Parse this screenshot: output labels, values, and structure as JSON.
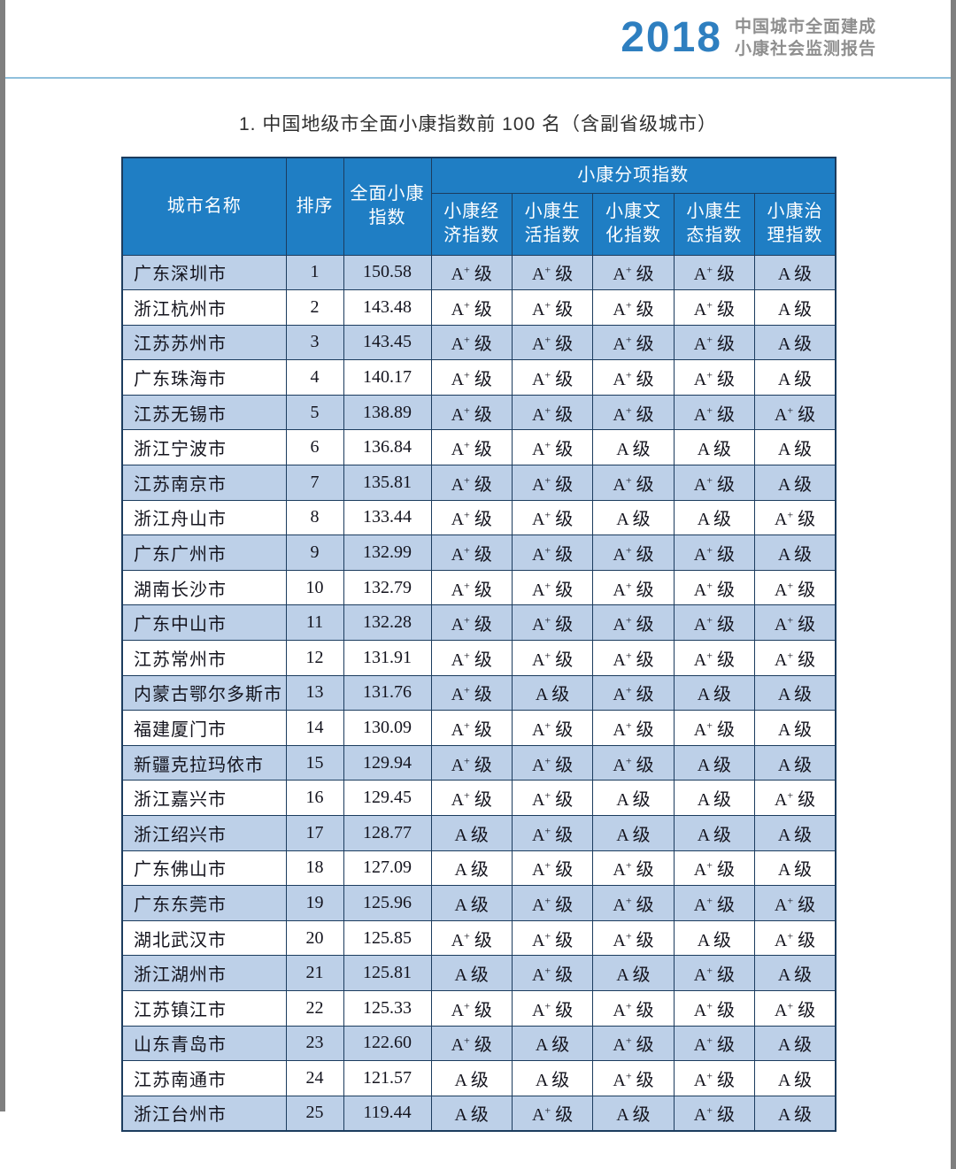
{
  "page": {
    "report_year": "2018",
    "report_title_line1": "中国城市全面建成",
    "report_title_line2": "小康社会监测报告",
    "section_title": "1. 中国地级市全面小康指数前 100 名（含副省级城市）"
  },
  "colors": {
    "header_blue": "#1f7ec4",
    "row_alt_blue": "#bdd0e8",
    "border_dark": "#1c3c5e",
    "year_accent_blue": "#2e7fc0",
    "report_name_gray": "#8e8e8e",
    "rule_light_blue": "#8fc0dc"
  },
  "table": {
    "headers": {
      "city": "城市名称",
      "rank": "排序",
      "overall_index_line1": "全面小康",
      "overall_index_line2": "指数",
      "sub_index_group": "小康分项指数",
      "sub_headers": [
        {
          "line1": "小康经",
          "line2": "济指数"
        },
        {
          "line1": "小康生",
          "line2": "活指数"
        },
        {
          "line1": "小康文",
          "line2": "化指数"
        },
        {
          "line1": "小康生",
          "line2": "态指数"
        },
        {
          "line1": "小康治",
          "line2": "理指数"
        }
      ]
    },
    "grade_suffix": "级",
    "rows": [
      {
        "city": "广东深圳市",
        "rank": "1",
        "index": "150.58",
        "grades": [
          "A+",
          "A+",
          "A+",
          "A+",
          "A"
        ]
      },
      {
        "city": "浙江杭州市",
        "rank": "2",
        "index": "143.48",
        "grades": [
          "A+",
          "A+",
          "A+",
          "A+",
          "A"
        ]
      },
      {
        "city": "江苏苏州市",
        "rank": "3",
        "index": "143.45",
        "grades": [
          "A+",
          "A+",
          "A+",
          "A+",
          "A"
        ]
      },
      {
        "city": "广东珠海市",
        "rank": "4",
        "index": "140.17",
        "grades": [
          "A+",
          "A+",
          "A+",
          "A+",
          "A"
        ]
      },
      {
        "city": "江苏无锡市",
        "rank": "5",
        "index": "138.89",
        "grades": [
          "A+",
          "A+",
          "A+",
          "A+",
          "A+"
        ]
      },
      {
        "city": "浙江宁波市",
        "rank": "6",
        "index": "136.84",
        "grades": [
          "A+",
          "A+",
          "A",
          "A",
          "A"
        ]
      },
      {
        "city": "江苏南京市",
        "rank": "7",
        "index": "135.81",
        "grades": [
          "A+",
          "A+",
          "A+",
          "A+",
          "A"
        ]
      },
      {
        "city": "浙江舟山市",
        "rank": "8",
        "index": "133.44",
        "grades": [
          "A+",
          "A+",
          "A",
          "A",
          "A+"
        ]
      },
      {
        "city": "广东广州市",
        "rank": "9",
        "index": "132.99",
        "grades": [
          "A+",
          "A+",
          "A+",
          "A+",
          "A"
        ]
      },
      {
        "city": "湖南长沙市",
        "rank": "10",
        "index": "132.79",
        "grades": [
          "A+",
          "A+",
          "A+",
          "A+",
          "A+"
        ]
      },
      {
        "city": "广东中山市",
        "rank": "11",
        "index": "132.28",
        "grades": [
          "A+",
          "A+",
          "A+",
          "A+",
          "A+"
        ]
      },
      {
        "city": "江苏常州市",
        "rank": "12",
        "index": "131.91",
        "grades": [
          "A+",
          "A+",
          "A+",
          "A+",
          "A+"
        ]
      },
      {
        "city": "内蒙古鄂尔多斯市",
        "rank": "13",
        "index": "131.76",
        "grades": [
          "A+",
          "A",
          "A+",
          "A",
          "A"
        ]
      },
      {
        "city": "福建厦门市",
        "rank": "14",
        "index": "130.09",
        "grades": [
          "A+",
          "A+",
          "A+",
          "A+",
          "A"
        ]
      },
      {
        "city": "新疆克拉玛依市",
        "rank": "15",
        "index": "129.94",
        "grades": [
          "A+",
          "A+",
          "A+",
          "A",
          "A"
        ]
      },
      {
        "city": "浙江嘉兴市",
        "rank": "16",
        "index": "129.45",
        "grades": [
          "A+",
          "A+",
          "A",
          "A",
          "A+"
        ]
      },
      {
        "city": "浙江绍兴市",
        "rank": "17",
        "index": "128.77",
        "grades": [
          "A",
          "A+",
          "A",
          "A",
          "A"
        ]
      },
      {
        "city": "广东佛山市",
        "rank": "18",
        "index": "127.09",
        "grades": [
          "A",
          "A+",
          "A+",
          "A+",
          "A"
        ]
      },
      {
        "city": "广东东莞市",
        "rank": "19",
        "index": "125.96",
        "grades": [
          "A",
          "A+",
          "A+",
          "A+",
          "A+"
        ]
      },
      {
        "city": "湖北武汉市",
        "rank": "20",
        "index": "125.85",
        "grades": [
          "A+",
          "A+",
          "A+",
          "A",
          "A+"
        ]
      },
      {
        "city": "浙江湖州市",
        "rank": "21",
        "index": "125.81",
        "grades": [
          "A",
          "A+",
          "A",
          "A+",
          "A"
        ]
      },
      {
        "city": "江苏镇江市",
        "rank": "22",
        "index": "125.33",
        "grades": [
          "A+",
          "A+",
          "A+",
          "A+",
          "A+"
        ]
      },
      {
        "city": "山东青岛市",
        "rank": "23",
        "index": "122.60",
        "grades": [
          "A+",
          "A",
          "A+",
          "A+",
          "A"
        ]
      },
      {
        "city": "江苏南通市",
        "rank": "24",
        "index": "121.57",
        "grades": [
          "A",
          "A",
          "A+",
          "A+",
          "A"
        ]
      },
      {
        "city": "浙江台州市",
        "rank": "25",
        "index": "119.44",
        "grades": [
          "A",
          "A+",
          "A",
          "A+",
          "A"
        ]
      }
    ]
  }
}
